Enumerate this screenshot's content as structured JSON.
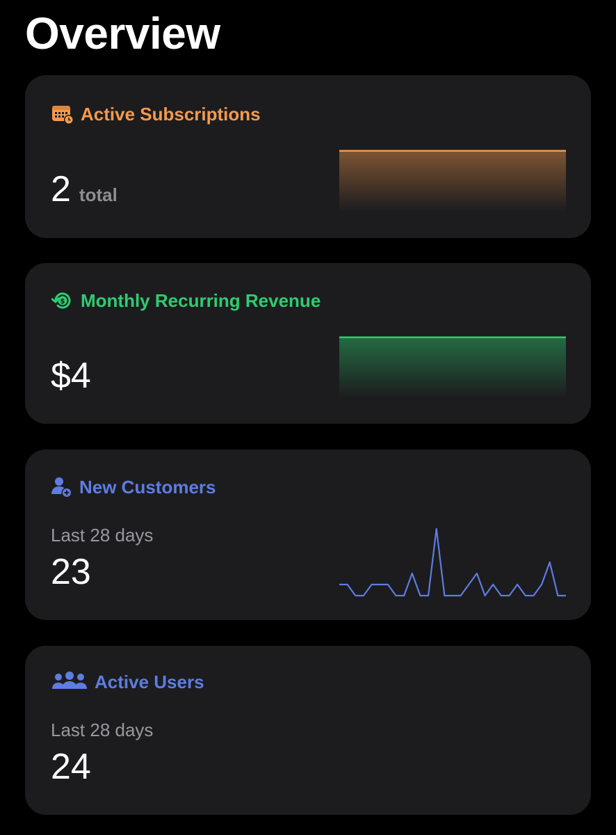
{
  "page": {
    "title": "Overview"
  },
  "colors": {
    "background": "#000000",
    "card": "#1c1c1e",
    "subscriptions_accent": "#f59a4c",
    "revenue_accent": "#2ecc71",
    "customers_accent": "#5e7ce2",
    "users_accent": "#5e7ce2",
    "secondary_text": "#98989d"
  },
  "cards": [
    {
      "title": "Active Subscriptions",
      "icon": "calendar-clock-icon",
      "value": "2",
      "unit": "total"
    },
    {
      "title": "Monthly Recurring Revenue",
      "icon": "dollar-refresh-icon",
      "value": "$4"
    },
    {
      "title": "New Customers",
      "icon": "person-add-icon",
      "subtitle": "Last 28 days",
      "value": "23"
    },
    {
      "title": "Active Users",
      "icon": "people-group-icon",
      "subtitle": "Last 28 days",
      "value": "24"
    }
  ],
  "chart_data": [
    {
      "type": "area",
      "series": [
        {
          "values": [
            2,
            2
          ]
        }
      ],
      "ylim": [
        0,
        2.2
      ]
    },
    {
      "type": "area",
      "series": [
        {
          "values": [
            4,
            4
          ]
        }
      ],
      "ylim": [
        0,
        4.4
      ]
    },
    {
      "type": "line",
      "series": [
        {
          "values": [
            1,
            1,
            0,
            0,
            1,
            1,
            1,
            0,
            0,
            2,
            0,
            0,
            6,
            0,
            0,
            0,
            1,
            2,
            0,
            1,
            0,
            0,
            1,
            0,
            0,
            1,
            3,
            0,
            0
          ]
        }
      ],
      "ylim": [
        0,
        6
      ]
    }
  ]
}
